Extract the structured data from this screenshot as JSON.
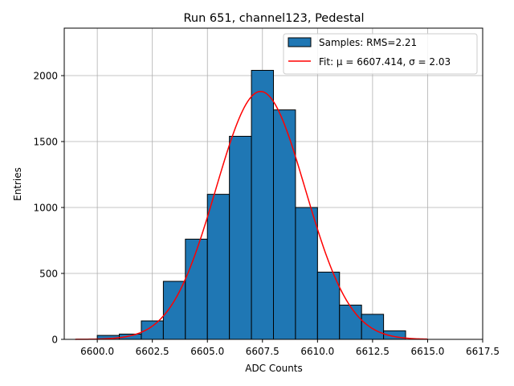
{
  "chart_data": {
    "type": "bar",
    "title": "Run 651, channel123, Pedestal",
    "xlabel": "ADC Counts",
    "ylabel": "Entries",
    "xlim": [
      6598.5,
      6617.5
    ],
    "ylim": [
      0,
      2360
    ],
    "grid": true,
    "legend_position": "top-right",
    "x_ticks": [
      6600.0,
      6602.5,
      6605.0,
      6607.5,
      6610.0,
      6612.5,
      6615.0,
      6617.5
    ],
    "x_tick_labels": [
      "6600.0",
      "6602.5",
      "6605.0",
      "6607.5",
      "6610.0",
      "6612.5",
      "6615.0",
      "6617.5"
    ],
    "y_ticks": [
      0,
      500,
      1000,
      1500,
      2000
    ],
    "y_tick_labels": [
      "0",
      "500",
      "1000",
      "1500",
      "2000"
    ],
    "histogram": {
      "name": "Samples: RMS=2.21",
      "color": "#1f77b4",
      "bin_edges": [
        6600,
        6601,
        6602,
        6603,
        6604,
        6605,
        6606,
        6607,
        6608,
        6609,
        6610,
        6611,
        6612,
        6613,
        6614
      ],
      "values": [
        30,
        40,
        140,
        440,
        760,
        1100,
        1540,
        2040,
        1740,
        1000,
        510,
        260,
        190,
        65
      ]
    },
    "fit": {
      "name": "Fit: μ = 6607.414, σ = 2.03",
      "color": "#ff0000",
      "mu": 6607.414,
      "sigma": 2.03,
      "amplitude": 1880,
      "x_range": [
        6599,
        6615
      ]
    }
  }
}
